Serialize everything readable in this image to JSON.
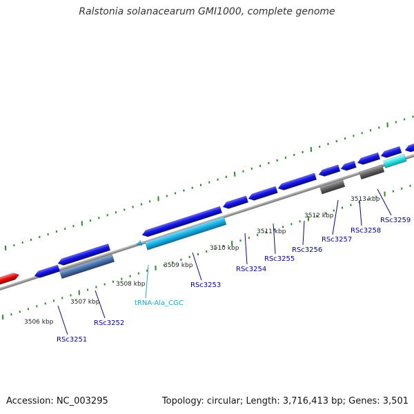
{
  "title": "Ralstonia solanacearum GMI1000, complete genome",
  "footer": {
    "accession": "Accession: NC_003295",
    "topology": "Topology: circular; Length: 3,716,413 bp; Genes: 3,501"
  },
  "colors": {
    "background": "#ffffff",
    "backbone": "#888888",
    "cds_forward": "#1414e6",
    "cds_reverse": "#4a74b0",
    "trna": "#1ab4e6",
    "gene_generic": "#666666",
    "cds_highlight": "#2ee6e6",
    "upstream_gene": "#e60f0f",
    "tick": "#2a8a2a",
    "gene_label": "#0000a0",
    "trna_label": "#1aa8d8"
  },
  "scale_labels": [
    "3506 kbp",
    "3507 kbp",
    "3508 kbp",
    "3509 kbp",
    "3510 kbp",
    "3511 kbp",
    "3512 kbp",
    "3513 kbp"
  ],
  "genes": [
    {
      "label": "RSc3251",
      "kind": "cds"
    },
    {
      "label": "RSc3252",
      "kind": "cds"
    },
    {
      "label": "tRNA-Ala_CGC",
      "kind": "trna"
    },
    {
      "label": "RSc3253",
      "kind": "cds"
    },
    {
      "label": "RSc3254",
      "kind": "cds"
    },
    {
      "label": "RSc3255",
      "kind": "cds"
    },
    {
      "label": "RSc3256",
      "kind": "cds"
    },
    {
      "label": "RSc3257",
      "kind": "cds"
    },
    {
      "label": "RSc3258",
      "kind": "cds"
    },
    {
      "label": "RSc3259",
      "kind": "cds"
    }
  ]
}
